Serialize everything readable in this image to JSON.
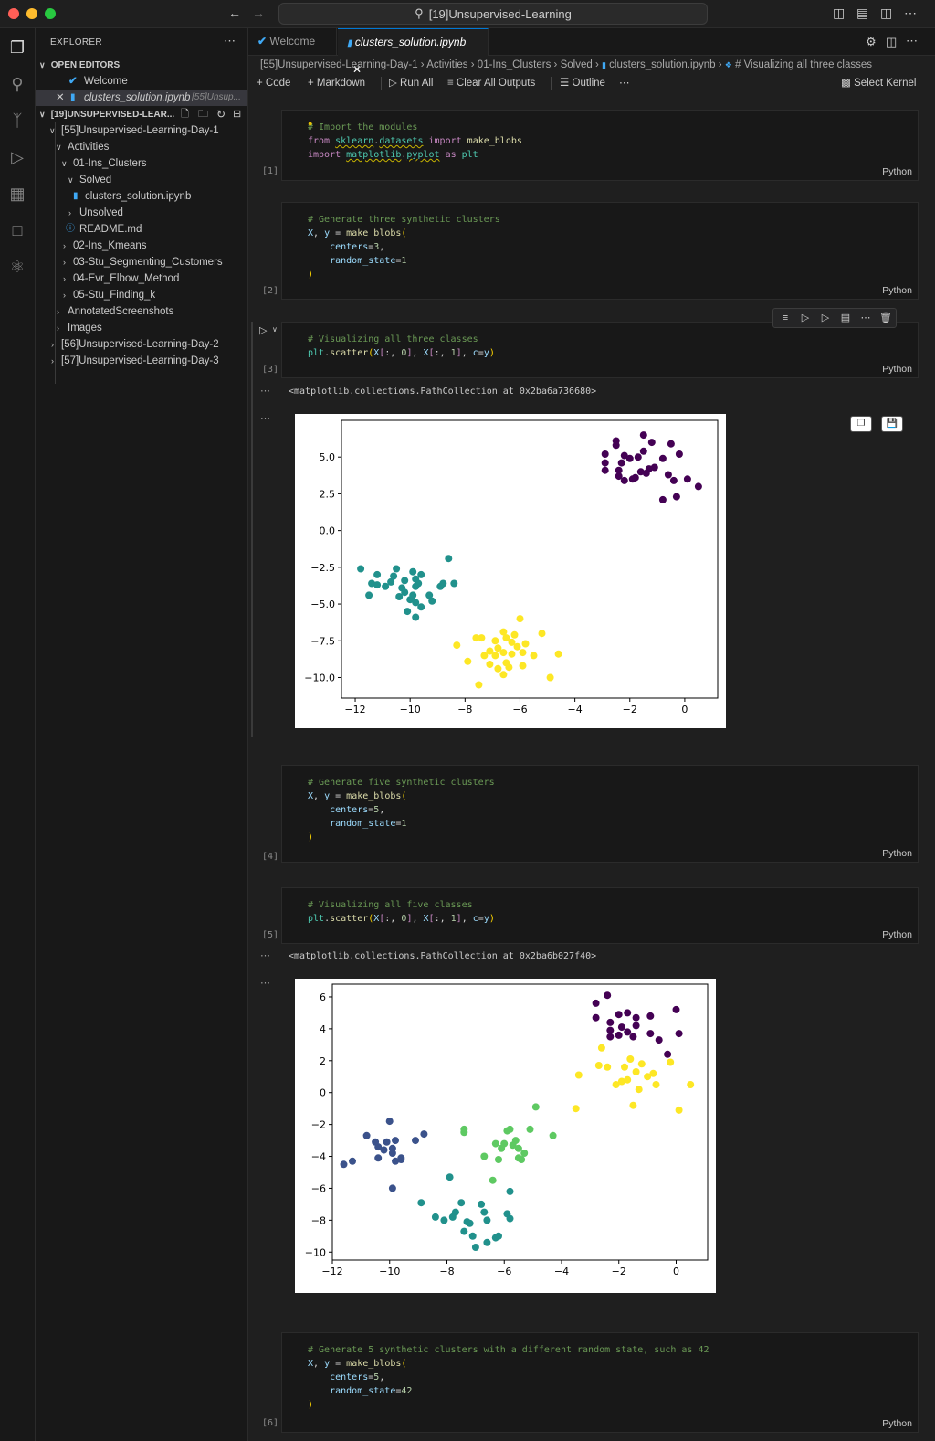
{
  "window": {
    "title": "[19]Unsupervised-Learning"
  },
  "sidebar": {
    "header": "EXPLORER",
    "open_editors": "OPEN EDITORS",
    "open_items": [
      {
        "label": "Welcome",
        "hint": ""
      },
      {
        "label": "clusters_solution.ipynb",
        "hint": "[55]Unsup..."
      }
    ],
    "workspace": "[19]UNSUPERVISED-LEAR...",
    "tree": [
      "[55]Unsupervised-Learning-Day-1",
      "Activities",
      "01-Ins_Clusters",
      "Solved",
      "clusters_solution.ipynb",
      "Unsolved",
      "README.md",
      "02-Ins_Kmeans",
      "03-Stu_Segmenting_Customers",
      "04-Evr_Elbow_Method",
      "05-Stu_Finding_k",
      "AnnotatedScreenshots",
      "Images",
      "[56]Unsupervised-Learning-Day-2",
      "[57]Unsupervised-Learning-Day-3"
    ]
  },
  "tabs": [
    {
      "label": "Welcome"
    },
    {
      "label": "clusters_solution.ipynb"
    }
  ],
  "breadcrumb": [
    "[55]Unsupervised-Learning-Day-1",
    "Activities",
    "01-Ins_Clusters",
    "Solved",
    "clusters_solution.ipynb",
    "# Visualizing all three classes"
  ],
  "toolbar": {
    "code": "Code",
    "markdown": "Markdown",
    "run_all": "Run All",
    "clear_outputs": "Clear All Outputs",
    "outline": "Outline",
    "kernel": "Select Kernel"
  },
  "cells": [
    {
      "count": "[1]",
      "lang": "Python"
    },
    {
      "count": "[2]",
      "lang": "Python"
    },
    {
      "count": "[3]",
      "lang": "Python"
    },
    {
      "count": "[4]",
      "lang": "Python"
    },
    {
      "count": "[5]",
      "lang": "Python"
    },
    {
      "count": "[6]",
      "lang": "Python"
    }
  ],
  "outputs": {
    "out3": "<matplotlib.collections.PathCollection at 0x2ba6a736680>",
    "out5": "<matplotlib.collections.PathCollection at 0x2ba6b027f40>"
  },
  "colors": {
    "purple": "#440154",
    "blue": "#3b528b",
    "teal": "#21918c",
    "green": "#5ec962",
    "yellow": "#fde725"
  },
  "chart_data": [
    {
      "type": "scatter",
      "xlim": [
        -12.5,
        1.2
      ],
      "ylim": [
        -11.4,
        7.5
      ],
      "xticks": [
        -12,
        -10,
        -8,
        -6,
        -4,
        -2,
        0
      ],
      "yticks": [
        -10.0,
        -7.5,
        -5.0,
        -2.5,
        0.0,
        2.5,
        5.0
      ],
      "xticklabels": [
        "−12",
        "−10",
        "−8",
        "−6",
        "−4",
        "−2",
        "0"
      ],
      "yticklabels": [
        "−10.0",
        "−7.5",
        "−5.0",
        "−2.5",
        "0.0",
        "2.5",
        "5.0"
      ],
      "series": [
        {
          "color": "#440154",
          "points": [
            [
              -2.9,
              5.2
            ],
            [
              -2.5,
              6.1
            ],
            [
              -2.5,
              5.8
            ],
            [
              -2.2,
              5.1
            ],
            [
              -2.9,
              4.6
            ],
            [
              -2.9,
              4.1
            ],
            [
              -2.4,
              4.1
            ],
            [
              -2.4,
              3.7
            ],
            [
              -2.2,
              3.4
            ],
            [
              -1.9,
              3.5
            ],
            [
              -2.0,
              4.9
            ],
            [
              -1.7,
              5.0
            ],
            [
              -1.5,
              5.4
            ],
            [
              -1.5,
              6.5
            ],
            [
              -1.2,
              6.0
            ],
            [
              -1.3,
              4.2
            ],
            [
              -1.4,
              3.9
            ],
            [
              -1.6,
              4.0
            ],
            [
              -0.8,
              4.9
            ],
            [
              -0.5,
              5.9
            ],
            [
              -0.2,
              5.2
            ],
            [
              -0.6,
              3.8
            ],
            [
              -0.4,
              3.4
            ],
            [
              -0.8,
              2.1
            ],
            [
              -0.3,
              2.3
            ],
            [
              0.1,
              3.5
            ],
            [
              0.5,
              3.0
            ],
            [
              -1.8,
              3.6
            ],
            [
              -1.1,
              4.3
            ],
            [
              -2.3,
              4.6
            ]
          ]
        },
        {
          "color": "#21918c",
          "points": [
            [
              -11.8,
              -2.6
            ],
            [
              -11.4,
              -3.6
            ],
            [
              -11.2,
              -3.0
            ],
            [
              -11.2,
              -3.7
            ],
            [
              -11.5,
              -4.4
            ],
            [
              -10.9,
              -3.8
            ],
            [
              -10.7,
              -3.5
            ],
            [
              -10.6,
              -3.1
            ],
            [
              -10.5,
              -2.6
            ],
            [
              -10.4,
              -4.5
            ],
            [
              -10.2,
              -4.2
            ],
            [
              -10.0,
              -4.7
            ],
            [
              -10.2,
              -3.4
            ],
            [
              -9.9,
              -2.8
            ],
            [
              -9.8,
              -3.3
            ],
            [
              -9.8,
              -3.8
            ],
            [
              -9.7,
              -3.6
            ],
            [
              -9.6,
              -3.0
            ],
            [
              -9.8,
              -4.9
            ],
            [
              -9.6,
              -5.2
            ],
            [
              -9.8,
              -5.9
            ],
            [
              -10.1,
              -5.5
            ],
            [
              -9.3,
              -4.4
            ],
            [
              -9.2,
              -4.8
            ],
            [
              -8.9,
              -3.8
            ],
            [
              -8.8,
              -3.6
            ],
            [
              -8.6,
              -1.9
            ],
            [
              -8.4,
              -3.6
            ],
            [
              -10.3,
              -3.9
            ],
            [
              -9.9,
              -4.4
            ]
          ]
        },
        {
          "color": "#fde725",
          "points": [
            [
              -8.3,
              -7.8
            ],
            [
              -7.9,
              -8.9
            ],
            [
              -7.6,
              -7.3
            ],
            [
              -7.4,
              -7.3
            ],
            [
              -7.5,
              -10.5
            ],
            [
              -7.1,
              -9.1
            ],
            [
              -7.1,
              -8.2
            ],
            [
              -6.9,
              -7.5
            ],
            [
              -6.8,
              -8.0
            ],
            [
              -6.9,
              -8.5
            ],
            [
              -6.6,
              -8.3
            ],
            [
              -6.6,
              -6.9
            ],
            [
              -6.5,
              -7.3
            ],
            [
              -6.3,
              -7.6
            ],
            [
              -6.3,
              -8.4
            ],
            [
              -6.5,
              -9.0
            ],
            [
              -6.4,
              -9.3
            ],
            [
              -6.1,
              -7.9
            ],
            [
              -6.0,
              -6.0
            ],
            [
              -5.9,
              -8.3
            ],
            [
              -5.9,
              -9.2
            ],
            [
              -5.5,
              -8.5
            ],
            [
              -5.2,
              -7.0
            ],
            [
              -4.6,
              -8.4
            ],
            [
              -4.9,
              -10.0
            ],
            [
              -6.6,
              -9.8
            ],
            [
              -6.8,
              -9.4
            ],
            [
              -7.3,
              -8.5
            ],
            [
              -6.2,
              -7.1
            ],
            [
              -5.8,
              -7.7
            ]
          ]
        }
      ]
    },
    {
      "type": "scatter",
      "xlim": [
        -12.0,
        1.1
      ],
      "ylim": [
        -10.5,
        6.8
      ],
      "xticks": [
        -12,
        -10,
        -8,
        -6,
        -4,
        -2,
        0
      ],
      "yticks": [
        -10,
        -8,
        -6,
        -4,
        -2,
        0,
        2,
        4,
        6
      ],
      "xticklabels": [
        "−12",
        "−10",
        "−8",
        "−6",
        "−4",
        "−2",
        "0"
      ],
      "yticklabels": [
        "−10",
        "−8",
        "−6",
        "−4",
        "−2",
        "0",
        "2",
        "4",
        "6"
      ],
      "series": [
        {
          "color": "#440154",
          "points": [
            [
              -2.8,
              5.6
            ],
            [
              -2.4,
              6.1
            ],
            [
              -2.8,
              4.7
            ],
            [
              -2.3,
              4.4
            ],
            [
              -2.3,
              3.9
            ],
            [
              -2.3,
              3.5
            ],
            [
              -2.0,
              4.9
            ],
            [
              -1.7,
              5.0
            ],
            [
              -1.9,
              4.1
            ],
            [
              -1.7,
              3.8
            ],
            [
              -1.5,
              3.5
            ],
            [
              -1.4,
              4.2
            ],
            [
              -1.4,
              4.7
            ],
            [
              -0.9,
              4.8
            ],
            [
              -0.9,
              3.7
            ],
            [
              -0.6,
              3.3
            ],
            [
              0.0,
              5.2
            ],
            [
              0.1,
              3.7
            ],
            [
              -0.3,
              2.4
            ],
            [
              -2.0,
              3.6
            ]
          ]
        },
        {
          "color": "#fde725",
          "points": [
            [
              -3.4,
              1.1
            ],
            [
              -3.5,
              -1.0
            ],
            [
              -2.7,
              1.7
            ],
            [
              -2.6,
              2.8
            ],
            [
              -2.4,
              1.6
            ],
            [
              -2.1,
              0.5
            ],
            [
              -1.9,
              0.7
            ],
            [
              -1.8,
              1.6
            ],
            [
              -1.7,
              0.8
            ],
            [
              -1.6,
              2.1
            ],
            [
              -1.4,
              1.3
            ],
            [
              -1.5,
              -0.8
            ],
            [
              -1.2,
              1.8
            ],
            [
              -1.0,
              1.0
            ],
            [
              -0.8,
              1.2
            ],
            [
              -0.7,
              0.5
            ],
            [
              -0.2,
              1.9
            ],
            [
              0.1,
              -1.1
            ],
            [
              0.5,
              0.5
            ],
            [
              -1.3,
              0.2
            ]
          ]
        },
        {
          "color": "#3b528b",
          "points": [
            [
              -11.6,
              -4.5
            ],
            [
              -11.3,
              -4.3
            ],
            [
              -10.8,
              -2.7
            ],
            [
              -10.5,
              -3.1
            ],
            [
              -10.4,
              -3.4
            ],
            [
              -10.4,
              -4.1
            ],
            [
              -10.1,
              -3.1
            ],
            [
              -10.0,
              -1.8
            ],
            [
              -9.9,
              -3.5
            ],
            [
              -9.8,
              -3.0
            ],
            [
              -9.8,
              -4.3
            ],
            [
              -9.6,
              -4.1
            ],
            [
              -9.6,
              -4.2
            ],
            [
              -9.1,
              -3.0
            ],
            [
              -8.8,
              -2.6
            ],
            [
              -9.9,
              -6.0
            ],
            [
              -10.2,
              -3.6
            ],
            [
              -9.9,
              -3.8
            ]
          ]
        },
        {
          "color": "#5ec962",
          "points": [
            [
              -7.4,
              -2.3
            ],
            [
              -7.4,
              -2.5
            ],
            [
              -6.7,
              -4.0
            ],
            [
              -6.4,
              -5.5
            ],
            [
              -6.3,
              -3.2
            ],
            [
              -6.1,
              -3.5
            ],
            [
              -6.2,
              -4.2
            ],
            [
              -5.9,
              -2.4
            ],
            [
              -5.8,
              -2.3
            ],
            [
              -5.7,
              -3.3
            ],
            [
              -5.6,
              -3.0
            ],
            [
              -5.5,
              -3.5
            ],
            [
              -5.4,
              -4.2
            ],
            [
              -5.3,
              -3.8
            ],
            [
              -5.1,
              -2.3
            ],
            [
              -4.9,
              -0.9
            ],
            [
              -4.3,
              -2.7
            ],
            [
              -6.0,
              -3.2
            ],
            [
              -5.5,
              -4.1
            ]
          ]
        },
        {
          "color": "#21918c",
          "points": [
            [
              -8.9,
              -6.9
            ],
            [
              -8.4,
              -7.8
            ],
            [
              -8.1,
              -8.0
            ],
            [
              -7.8,
              -7.8
            ],
            [
              -7.7,
              -7.5
            ],
            [
              -7.5,
              -6.9
            ],
            [
              -7.3,
              -8.1
            ],
            [
              -7.4,
              -8.7
            ],
            [
              -7.1,
              -9.0
            ],
            [
              -7.0,
              -9.7
            ],
            [
              -6.8,
              -7.0
            ],
            [
              -6.7,
              -7.5
            ],
            [
              -6.6,
              -8.0
            ],
            [
              -6.6,
              -9.4
            ],
            [
              -6.3,
              -9.1
            ],
            [
              -6.2,
              -9.0
            ],
            [
              -5.9,
              -7.6
            ],
            [
              -5.8,
              -7.9
            ],
            [
              -5.8,
              -6.2
            ],
            [
              -7.9,
              -5.3
            ],
            [
              -7.2,
              -8.2
            ]
          ]
        }
      ]
    }
  ]
}
